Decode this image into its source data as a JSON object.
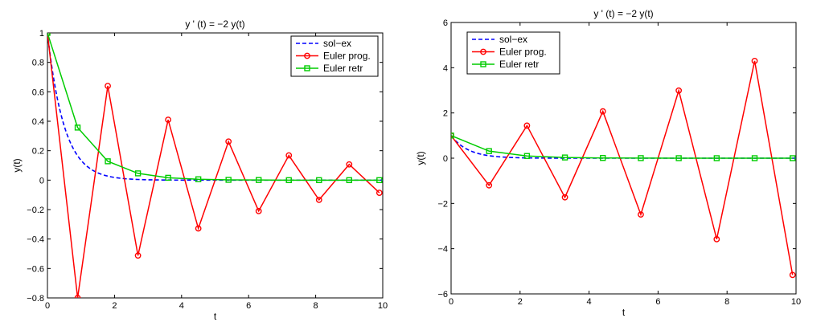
{
  "chart_data": [
    {
      "type": "line",
      "title": "y ' (t)  =  −2 y(t)",
      "xlabel": "t",
      "ylabel": "y(t)",
      "xlim": [
        0,
        10
      ],
      "ylim": [
        -0.8,
        1
      ],
      "xticks": [
        0,
        2,
        4,
        6,
        8,
        10
      ],
      "xtick_labels": [
        "0",
        "2",
        "4",
        "6",
        "8",
        "10"
      ],
      "yticks": [
        -0.8,
        -0.6,
        -0.4,
        -0.2,
        0,
        0.2,
        0.4,
        0.6,
        0.8,
        1
      ],
      "ytick_labels": [
        "−0.8",
        "−0.6",
        "−0.4",
        "−0.2",
        "0",
        "0.2",
        "0.4",
        "0.6",
        "0.8",
        "1"
      ],
      "legend_position": "top-right",
      "series": [
        {
          "name": "sol−ex",
          "color": "#0000ff",
          "style": "dashed",
          "marker": "none",
          "function": "exp(-2t)"
        },
        {
          "name": "Euler prog.",
          "color": "#ff0000",
          "style": "solid",
          "marker": "circle",
          "x": [
            0,
            0.9,
            1.8,
            2.7,
            3.6,
            4.5,
            5.4,
            6.3,
            7.2,
            8.1,
            9.0,
            9.9
          ],
          "y": [
            1,
            -0.8,
            0.64,
            -0.512,
            0.41,
            -0.328,
            0.262,
            -0.21,
            0.168,
            -0.134,
            0.107,
            -0.086
          ]
        },
        {
          "name": "Euler retr",
          "color": "#00cc00",
          "style": "solid",
          "marker": "square",
          "x": [
            0,
            0.9,
            1.8,
            2.7,
            3.6,
            4.5,
            5.4,
            6.3,
            7.2,
            8.1,
            9.0,
            9.9
          ],
          "y": [
            1,
            0.357,
            0.128,
            0.046,
            0.016,
            0.006,
            0.002,
            0.001,
            0,
            0,
            0,
            0
          ]
        }
      ]
    },
    {
      "type": "line",
      "title": "y ' (t)  =  −2 y(t)",
      "xlabel": "t",
      "ylabel": "y(t)",
      "xlim": [
        0,
        10
      ],
      "ylim": [
        -6,
        6
      ],
      "xticks": [
        0,
        2,
        4,
        6,
        8,
        10
      ],
      "xtick_labels": [
        "0",
        "2",
        "4",
        "6",
        "8",
        "10"
      ],
      "yticks": [
        -6,
        -4,
        -2,
        0,
        2,
        4,
        6
      ],
      "ytick_labels": [
        "−6",
        "−4",
        "−2",
        "0",
        "2",
        "4",
        "6"
      ],
      "legend_position": "top-left",
      "series": [
        {
          "name": "sol−ex",
          "color": "#0000ff",
          "style": "dashed",
          "marker": "none",
          "function": "exp(-2t)"
        },
        {
          "name": "Euler prog.",
          "color": "#ff0000",
          "style": "solid",
          "marker": "circle",
          "x": [
            0,
            1.1,
            2.2,
            3.3,
            4.4,
            5.5,
            6.6,
            7.7,
            8.8,
            9.9
          ],
          "y": [
            1,
            -1.2,
            1.44,
            -1.73,
            2.07,
            -2.49,
            2.99,
            -3.58,
            4.3,
            -5.16
          ]
        },
        {
          "name": "Euler retr",
          "color": "#00cc00",
          "style": "solid",
          "marker": "square",
          "x": [
            0,
            1.1,
            2.2,
            3.3,
            4.4,
            5.5,
            6.6,
            7.7,
            8.8,
            9.9
          ],
          "y": [
            1,
            0.313,
            0.098,
            0.031,
            0.01,
            0.003,
            0.001,
            0,
            0,
            0
          ]
        }
      ]
    }
  ]
}
